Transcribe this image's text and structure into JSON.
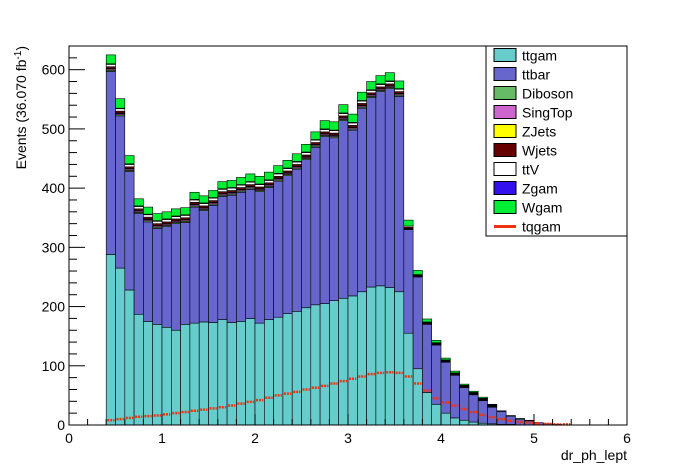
{
  "chart_data": {
    "type": "bar",
    "stacked": true,
    "xlabel": "dr_ph_lept",
    "ylabel": "Events (36.070 fb",
    "ylabel_sup": "-1",
    "ylabel_end": ")",
    "xlim": [
      0,
      6
    ],
    "ylim": [
      0,
      640
    ],
    "xticks": [
      0,
      1,
      2,
      3,
      4,
      5,
      6
    ],
    "yticks": [
      0,
      100,
      200,
      300,
      400,
      500,
      600
    ],
    "grid": false,
    "legend_position": "top-right",
    "bin_start": 0.4,
    "bin_width": 0.1,
    "series": [
      {
        "name": "ttgam",
        "color": "#66cccc",
        "values": [
          288,
          265,
          228,
          187,
          175,
          170,
          165,
          160,
          170,
          172,
          174,
          173,
          178,
          173,
          175,
          180,
          172,
          178,
          182,
          188,
          192,
          198,
          203,
          205,
          210,
          214,
          218,
          225,
          233,
          235,
          232,
          225,
          155,
          95,
          55,
          35,
          20,
          12,
          8,
          5,
          3,
          2,
          1,
          1,
          0,
          0,
          0,
          0,
          0,
          0,
          0,
          0
        ]
      },
      {
        "name": "ttbar",
        "color": "#6666cc",
        "values": [
          309,
          257,
          200,
          170,
          168,
          162,
          170,
          180,
          172,
          196,
          188,
          198,
          208,
          215,
          218,
          218,
          222,
          223,
          230,
          233,
          240,
          250,
          266,
          282,
          275,
          300,
          280,
          310,
          320,
          328,
          336,
          330,
          175,
          155,
          115,
          100,
          86,
          72,
          55,
          46,
          38,
          28,
          22,
          14,
          10,
          7,
          4,
          2,
          1,
          0,
          0,
          0
        ]
      },
      {
        "name": "Diboson",
        "color": "#66bb66",
        "values": [
          2,
          2,
          2,
          2,
          2,
          2,
          2,
          2,
          2,
          2,
          2,
          2,
          2,
          2,
          2,
          2,
          2,
          2,
          2,
          2,
          2,
          2,
          2,
          2,
          2,
          2,
          2,
          2,
          2,
          2,
          2,
          2,
          1,
          1,
          1,
          1,
          1,
          1,
          1,
          1,
          1,
          1,
          0,
          0,
          0,
          0,
          0,
          0,
          0,
          0,
          0,
          0
        ]
      },
      {
        "name": "SingTop",
        "color": "#cc66cc",
        "values": [
          2,
          2,
          2,
          2,
          2,
          2,
          2,
          2,
          2,
          2,
          2,
          2,
          2,
          2,
          2,
          2,
          2,
          2,
          2,
          2,
          2,
          2,
          2,
          2,
          2,
          2,
          2,
          2,
          2,
          2,
          2,
          2,
          1,
          1,
          1,
          1,
          1,
          1,
          1,
          1,
          1,
          1,
          0,
          0,
          0,
          0,
          0,
          0,
          0,
          0,
          0,
          0
        ]
      },
      {
        "name": "ZJets",
        "color": "#ffff00",
        "values": [
          1,
          1,
          1,
          1,
          1,
          1,
          1,
          1,
          1,
          1,
          1,
          1,
          1,
          1,
          1,
          1,
          1,
          1,
          1,
          1,
          1,
          1,
          1,
          1,
          1,
          1,
          1,
          1,
          1,
          1,
          1,
          1,
          0,
          0,
          0,
          0,
          0,
          0,
          0,
          0,
          0,
          0,
          0,
          0,
          0,
          0,
          0,
          0,
          0,
          0,
          0,
          0
        ]
      },
      {
        "name": "Wjets",
        "color": "#660000",
        "values": [
          3,
          3,
          3,
          3,
          3,
          3,
          3,
          3,
          3,
          3,
          3,
          3,
          3,
          3,
          3,
          3,
          3,
          3,
          3,
          3,
          3,
          3,
          3,
          3,
          3,
          3,
          3,
          3,
          3,
          3,
          3,
          3,
          2,
          1,
          1,
          1,
          1,
          1,
          1,
          1,
          1,
          1,
          0,
          0,
          0,
          0,
          0,
          0,
          0,
          0,
          0,
          0
        ]
      },
      {
        "name": "ttV",
        "color": "#ffffff",
        "values": [
          4,
          4,
          4,
          4,
          4,
          4,
          4,
          4,
          4,
          4,
          4,
          4,
          4,
          4,
          4,
          4,
          4,
          4,
          4,
          4,
          4,
          4,
          4,
          4,
          4,
          4,
          4,
          4,
          4,
          4,
          4,
          4,
          2,
          1,
          1,
          1,
          1,
          1,
          1,
          1,
          1,
          1,
          0,
          0,
          0,
          0,
          0,
          0,
          0,
          0,
          0,
          0
        ]
      },
      {
        "name": "Zgam",
        "color": "#3311ee",
        "values": [
          1,
          1,
          1,
          1,
          1,
          1,
          1,
          1,
          1,
          1,
          1,
          1,
          1,
          1,
          1,
          1,
          1,
          1,
          1,
          1,
          1,
          1,
          1,
          1,
          1,
          1,
          1,
          1,
          1,
          1,
          1,
          1,
          0,
          0,
          0,
          0,
          0,
          0,
          0,
          0,
          0,
          0,
          0,
          0,
          0,
          0,
          0,
          0,
          0,
          0,
          0,
          0
        ]
      },
      {
        "name": "Wgam",
        "color": "#00ee33",
        "values": [
          15,
          16,
          14,
          12,
          12,
          12,
          12,
          12,
          12,
          12,
          12,
          12,
          12,
          12,
          12,
          13,
          13,
          13,
          13,
          13,
          13,
          13,
          13,
          14,
          14,
          14,
          14,
          14,
          14,
          14,
          14,
          13,
          10,
          7,
          5,
          4,
          3,
          3,
          2,
          2,
          2,
          1,
          1,
          1,
          1,
          1,
          0,
          0,
          0,
          0,
          0,
          0
        ]
      }
    ],
    "overlay": {
      "name": "tqgam",
      "color": "#ee3311",
      "values": [
        8,
        10,
        12,
        14,
        15,
        16,
        18,
        20,
        22,
        24,
        26,
        28,
        30,
        33,
        36,
        39,
        42,
        46,
        50,
        53,
        56,
        60,
        63,
        66,
        70,
        74,
        78,
        82,
        86,
        88,
        89,
        88,
        82,
        70,
        58,
        45,
        38,
        33,
        27,
        22,
        17,
        13,
        10,
        7,
        5,
        4,
        3,
        2,
        1,
        1,
        0,
        0
      ]
    }
  }
}
